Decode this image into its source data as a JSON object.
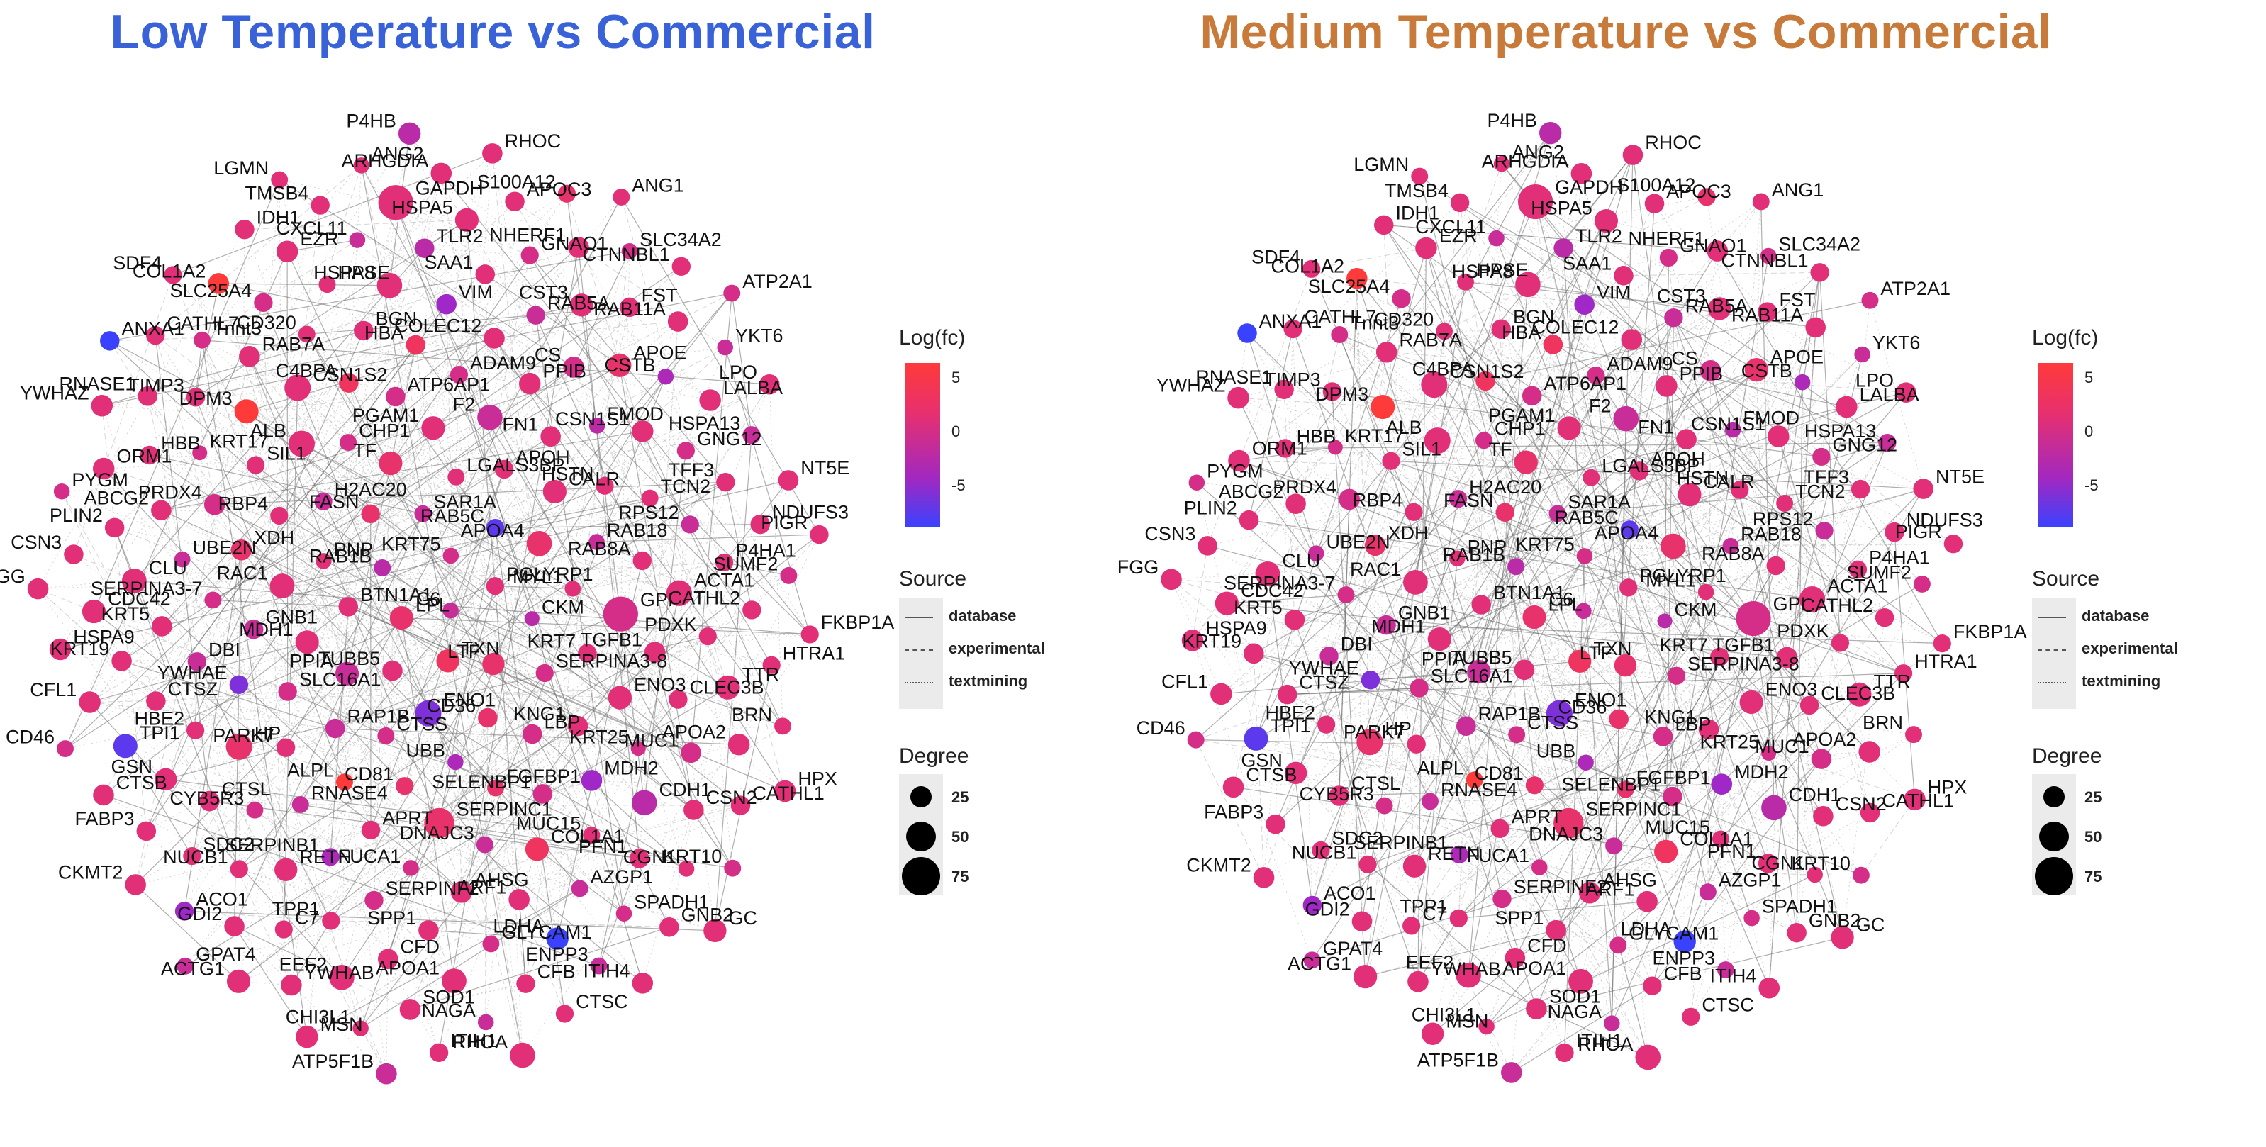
{
  "panels": [
    {
      "id": "low",
      "title": "Low Temperature vs Commercial",
      "title_color": "#3a62d8"
    },
    {
      "id": "medium",
      "title": "Medium Temperature vs Commercial",
      "title_color": "#c87a3a"
    }
  ],
  "legend": {
    "color_title": "Log(fc)",
    "color_ticks": [
      "5",
      "0",
      "-5"
    ],
    "color_high": "#ff3a3a",
    "color_low": "#3a42ff",
    "source_title": "Source",
    "source_items": [
      "database",
      "experimental",
      "textmining"
    ],
    "degree_title": "Degree",
    "degree_items": [
      "25",
      "50",
      "75"
    ]
  },
  "nodes": [
    {
      "label": "C6",
      "lfc": -2,
      "deg": 10
    },
    {
      "label": "LPL",
      "lfc": 1,
      "deg": 30
    },
    {
      "label": "KRT75",
      "lfc": -1,
      "deg": 10
    },
    {
      "label": "TXN",
      "lfc": 2,
      "deg": 28
    },
    {
      "label": "RAB1B",
      "lfc": -3,
      "deg": 12
    },
    {
      "label": "PGLYRP1",
      "lfc": 0,
      "deg": 14
    },
    {
      "label": "TUBB5",
      "lfc": 0,
      "deg": 20
    },
    {
      "label": "SAR1A",
      "lfc": -2,
      "deg": 12
    },
    {
      "label": "LTF",
      "lfc": 1,
      "deg": 26
    },
    {
      "label": "BTN1A1",
      "lfc": 0,
      "deg": 18
    },
    {
      "label": "RAB5C",
      "lfc": -7,
      "deg": 14
    },
    {
      "label": "ENO1",
      "lfc": -6,
      "deg": 40
    },
    {
      "label": "FASN",
      "lfc": 1,
      "deg": 16
    },
    {
      "label": "CKM",
      "lfc": -3,
      "deg": 8
    },
    {
      "label": "PPIA",
      "lfc": -2,
      "deg": 30
    },
    {
      "label": "LGALS3BP",
      "lfc": 0,
      "deg": 12
    },
    {
      "label": "CD36",
      "lfc": 1,
      "deg": 18
    },
    {
      "label": "PNP",
      "lfc": 0,
      "deg": 10
    },
    {
      "label": "APOA4",
      "lfc": 1,
      "deg": 36
    },
    {
      "label": "CTSS",
      "lfc": -1,
      "deg": 12
    },
    {
      "label": "TF",
      "lfc": 1,
      "deg": 30
    },
    {
      "label": "SERPINA3-8",
      "lfc": -1,
      "deg": 14
    },
    {
      "label": "MDH1",
      "lfc": 0,
      "deg": 30
    },
    {
      "label": "APOH",
      "lfc": 0,
      "deg": 16
    },
    {
      "label": "UBB",
      "lfc": -4,
      "deg": 10
    },
    {
      "label": "H2AC20",
      "lfc": -2,
      "deg": 14
    },
    {
      "label": "MYL1",
      "lfc": 0,
      "deg": 10
    },
    {
      "label": "RAP1B",
      "lfc": -2,
      "deg": 18
    },
    {
      "label": "PGAM1",
      "lfc": 0,
      "deg": 30
    },
    {
      "label": "LBP",
      "lfc": -1,
      "deg": 18
    },
    {
      "label": "RAC1",
      "lfc": 0,
      "deg": 34
    },
    {
      "label": "CALR",
      "lfc": 0,
      "deg": 30
    },
    {
      "label": "CD81",
      "lfc": 1,
      "deg": 14
    },
    {
      "label": "CHP1",
      "lfc": -1,
      "deg": 12
    },
    {
      "label": "KRT7",
      "lfc": 0,
      "deg": 16
    },
    {
      "label": "SLC16A1",
      "lfc": -1,
      "deg": 16
    },
    {
      "label": "F2",
      "lfc": -2,
      "deg": 36
    },
    {
      "label": "FGFBP1",
      "lfc": 1,
      "deg": 12
    },
    {
      "label": "RBP4",
      "lfc": 0,
      "deg": 14
    },
    {
      "label": "RAB18",
      "lfc": -2,
      "deg": 10
    },
    {
      "label": "ALPL",
      "lfc": 5,
      "deg": 12
    },
    {
      "label": "ATP6AP1",
      "lfc": -1,
      "deg": 18
    },
    {
      "label": "KNG1",
      "lfc": 0,
      "deg": 20
    },
    {
      "label": "GNB1",
      "lfc": -2,
      "deg": 18
    },
    {
      "label": "FN1",
      "lfc": 0,
      "deg": 20
    },
    {
      "label": "SERPINC1",
      "lfc": 1,
      "deg": 56
    },
    {
      "label": "ALB",
      "lfc": 0,
      "deg": 40
    },
    {
      "label": "GPI",
      "lfc": -1,
      "deg": 80
    },
    {
      "label": "PARK7",
      "lfc": 0,
      "deg": 16
    },
    {
      "label": "ADAM9",
      "lfc": -1,
      "deg": 14
    },
    {
      "label": "SELENBP1",
      "lfc": -1,
      "deg": 18
    },
    {
      "label": "XDH",
      "lfc": 1,
      "deg": 22
    },
    {
      "label": "HSTN",
      "lfc": 0,
      "deg": 14
    },
    {
      "label": "APRT",
      "lfc": 0,
      "deg": 16
    },
    {
      "label": "C4BPA",
      "lfc": 2,
      "deg": 18
    },
    {
      "label": "ENO3",
      "lfc": 0,
      "deg": 30
    },
    {
      "label": "YWHAE",
      "lfc": -6,
      "deg": 16
    },
    {
      "label": "PPIB",
      "lfc": 0,
      "deg": 24
    },
    {
      "label": "DNAJC3",
      "lfc": -2,
      "deg": 12
    },
    {
      "label": "SIL1",
      "lfc": 0,
      "deg": 14
    },
    {
      "label": "RAB8A",
      "lfc": 0,
      "deg": 16
    },
    {
      "label": "RNASE4",
      "lfc": -2,
      "deg": 12
    },
    {
      "label": "HBA",
      "lfc": 2,
      "deg": 18
    },
    {
      "label": "MDH2",
      "lfc": -5,
      "deg": 22
    },
    {
      "label": "SERPINA3-7",
      "lfc": -1,
      "deg": 12
    },
    {
      "label": "FMOD",
      "lfc": -3,
      "deg": 10
    },
    {
      "label": "FUCA1",
      "lfc": -1,
      "deg": 10
    },
    {
      "label": "CSN1S2",
      "lfc": 0,
      "deg": 40
    },
    {
      "label": "TGFB1",
      "lfc": 0,
      "deg": 22
    },
    {
      "label": "HP",
      "lfc": 1,
      "deg": 40
    },
    {
      "label": "COLEC12",
      "lfc": 0,
      "deg": 22
    },
    {
      "label": "COL1A1",
      "lfc": 2,
      "deg": 30
    },
    {
      "label": "PRDX4",
      "lfc": -1,
      "deg": 22
    },
    {
      "label": "TCN2",
      "lfc": 0,
      "deg": 12
    },
    {
      "label": "SERPINB1",
      "lfc": -4,
      "deg": 14
    },
    {
      "label": "BGN",
      "lfc": 0,
      "deg": 18
    },
    {
      "label": "KRT25",
      "lfc": -1,
      "deg": 8
    },
    {
      "label": "DBI",
      "lfc": -2,
      "deg": 16
    },
    {
      "label": "CS",
      "lfc": -1,
      "deg": 22
    },
    {
      "label": "AHSG",
      "lfc": 0,
      "deg": 24
    },
    {
      "label": "DPM3",
      "lfc": 5,
      "deg": 32
    },
    {
      "label": "ACTA1",
      "lfc": 0,
      "deg": 38
    },
    {
      "label": "CYB5R3",
      "lfc": -1,
      "deg": 12
    },
    {
      "label": "VIM",
      "lfc": -5,
      "deg": 20
    },
    {
      "label": "MUC15",
      "lfc": 0,
      "deg": 12
    },
    {
      "label": "UBE2N",
      "lfc": -2,
      "deg": 10
    },
    {
      "label": "CSN1S1",
      "lfc": 0,
      "deg": 24
    },
    {
      "label": "SERPINF2",
      "lfc": -1,
      "deg": 16
    },
    {
      "label": "CD320",
      "lfc": 0,
      "deg": 12
    },
    {
      "label": "CLEC3B",
      "lfc": 0,
      "deg": 16
    },
    {
      "label": "HBE2",
      "lfc": 0,
      "deg": 14
    },
    {
      "label": "RAB5A",
      "lfc": -2,
      "deg": 16
    },
    {
      "label": "ARF1",
      "lfc": 0,
      "deg": 22
    },
    {
      "label": "KRT17",
      "lfc": -1,
      "deg": 8
    },
    {
      "label": "RPS12",
      "lfc": -2,
      "deg": 14
    },
    {
      "label": "RETN",
      "lfc": 0,
      "deg": 28
    },
    {
      "label": "HSPA8",
      "lfc": 0,
      "deg": 36
    },
    {
      "label": "CDH1",
      "lfc": -3,
      "deg": 36
    },
    {
      "label": "KRT5",
      "lfc": 0,
      "deg": 20
    },
    {
      "label": "APOE",
      "lfc": 1,
      "deg": 30
    },
    {
      "label": "SPP1",
      "lfc": 0,
      "deg": 20
    },
    {
      "label": "RAB7A",
      "lfc": 0,
      "deg": 22
    },
    {
      "label": "PDXK",
      "lfc": 0,
      "deg": 14
    },
    {
      "label": "CTSL",
      "lfc": 0,
      "deg": 20
    },
    {
      "label": "SAA1",
      "lfc": 0,
      "deg": 18
    },
    {
      "label": "AZGP1",
      "lfc": -2,
      "deg": 12
    },
    {
      "label": "ABCG2",
      "lfc": 0,
      "deg": 20
    },
    {
      "label": "GNG12",
      "lfc": -1,
      "deg": 14
    },
    {
      "label": "TPP1",
      "lfc": 0,
      "deg": 14
    },
    {
      "label": "HPSE",
      "lfc": 0,
      "deg": 12
    },
    {
      "label": "MUC1",
      "lfc": -1,
      "deg": 20
    },
    {
      "label": "CTSZ",
      "lfc": 0,
      "deg": 18
    },
    {
      "label": "CST3",
      "lfc": 0,
      "deg": 28
    },
    {
      "label": "GLYCAM1",
      "lfc": -1,
      "deg": 12
    },
    {
      "label": "TIMP3",
      "lfc": 0,
      "deg": 16
    },
    {
      "label": "P4HA1",
      "lfc": 0,
      "deg": 14
    },
    {
      "label": "NUCB1",
      "lfc": 0,
      "deg": 14
    },
    {
      "label": "TLR2",
      "lfc": -3,
      "deg": 18
    },
    {
      "label": "PFN1",
      "lfc": 0,
      "deg": 18
    },
    {
      "label": "CLU",
      "lfc": 0,
      "deg": 34
    },
    {
      "label": "CSTB",
      "lfc": -4,
      "deg": 10
    },
    {
      "label": "CFD",
      "lfc": 0,
      "deg": 20
    },
    {
      "label": "SLC25A4",
      "lfc": -1,
      "deg": 16
    },
    {
      "label": "TTR",
      "lfc": 0,
      "deg": 32
    },
    {
      "label": "GSN",
      "lfc": 0,
      "deg": 26
    },
    {
      "label": "GNAO1",
      "lfc": -1,
      "deg": 14
    },
    {
      "label": "LDHA",
      "lfc": -8,
      "deg": 26
    },
    {
      "label": "HBB",
      "lfc": 0,
      "deg": 16
    },
    {
      "label": "TFF3",
      "lfc": 0,
      "deg": 16
    },
    {
      "label": "C7",
      "lfc": 0,
      "deg": 14
    },
    {
      "label": "CXCL11",
      "lfc": -2,
      "deg": 10
    },
    {
      "label": "CSN2",
      "lfc": 0,
      "deg": 20
    },
    {
      "label": "KRT19",
      "lfc": 0,
      "deg": 20
    },
    {
      "label": "FST",
      "lfc": 0,
      "deg": 18
    },
    {
      "label": "APOA1",
      "lfc": 0,
      "deg": 34
    },
    {
      "label": "Tnnt3",
      "lfc": -1,
      "deg": 12
    },
    {
      "label": "CATHL2",
      "lfc": 0,
      "deg": 16
    },
    {
      "label": "SDC2",
      "lfc": 0,
      "deg": 14
    },
    {
      "label": "HSPA5",
      "lfc": 0,
      "deg": 30
    },
    {
      "label": "SPADH1",
      "lfc": -1,
      "deg": 10
    },
    {
      "label": "PLIN2",
      "lfc": 0,
      "deg": 18
    },
    {
      "label": "LALBA",
      "lfc": 0,
      "deg": 24
    },
    {
      "label": "EEF2",
      "lfc": 0,
      "deg": 36
    },
    {
      "label": "EZR",
      "lfc": 0,
      "deg": 24
    },
    {
      "label": "APOA2",
      "lfc": 0,
      "deg": 24
    },
    {
      "label": "TPI1",
      "lfc": -7,
      "deg": 32
    },
    {
      "label": "NHERF1",
      "lfc": 0,
      "deg": 22
    },
    {
      "label": "CFB",
      "lfc": 0,
      "deg": 16
    },
    {
      "label": "RNASE1",
      "lfc": 0,
      "deg": 18
    },
    {
      "label": "NDUFS3",
      "lfc": 0,
      "deg": 18
    },
    {
      "label": "GDI2",
      "lfc": 0,
      "deg": 20
    },
    {
      "label": "GAPDH",
      "lfc": 0,
      "deg": 80
    },
    {
      "label": "CGN1",
      "lfc": 0,
      "deg": 10
    },
    {
      "label": "CDC42",
      "lfc": 0,
      "deg": 30
    },
    {
      "label": "RAB11A",
      "lfc": 0,
      "deg": 20
    },
    {
      "label": "SOD1",
      "lfc": 0,
      "deg": 22
    },
    {
      "label": "COL1A2",
      "lfc": 5,
      "deg": 22
    },
    {
      "label": "HTRA1",
      "lfc": 0,
      "deg": 14
    },
    {
      "label": "FABP3",
      "lfc": 0,
      "deg": 18
    },
    {
      "label": "APOC3",
      "lfc": 0,
      "deg": 18
    },
    {
      "label": "ENPP3",
      "lfc": -2,
      "deg": 12
    },
    {
      "label": "ORM1",
      "lfc": 0,
      "deg": 24
    },
    {
      "label": "HSPA13",
      "lfc": -2,
      "deg": 14
    },
    {
      "label": "YWHAB",
      "lfc": 0,
      "deg": 22
    },
    {
      "label": "TMSB4",
      "lfc": 0,
      "deg": 16
    },
    {
      "label": "CATHL1",
      "lfc": 0,
      "deg": 18
    },
    {
      "label": "CFL1",
      "lfc": 0,
      "deg": 24
    },
    {
      "label": "SLC34A2",
      "lfc": -1,
      "deg": 10
    },
    {
      "label": "NAGA",
      "lfc": -2,
      "deg": 10
    },
    {
      "label": "CATHL7",
      "lfc": 0,
      "deg": 16
    },
    {
      "label": "SUMF2",
      "lfc": -1,
      "deg": 12
    },
    {
      "label": "ACO1",
      "lfc": -5,
      "deg": 16
    },
    {
      "label": "ARHGDIA",
      "lfc": 0,
      "deg": 22
    },
    {
      "label": "GNB2",
      "lfc": 0,
      "deg": 18
    },
    {
      "label": "CSN3",
      "lfc": 0,
      "deg": 18
    },
    {
      "label": "YKT6",
      "lfc": -2,
      "deg": 10
    },
    {
      "label": "CHI3L1",
      "lfc": 0,
      "deg": 10
    },
    {
      "label": "IDH1",
      "lfc": 0,
      "deg": 18
    },
    {
      "label": "BRN",
      "lfc": 0,
      "deg": 12
    },
    {
      "label": "CTSB",
      "lfc": 0,
      "deg": 22
    },
    {
      "label": "S100A12",
      "lfc": 1,
      "deg": 14
    },
    {
      "label": "CTSC",
      "lfc": 0,
      "deg": 14
    },
    {
      "label": "YWHAZ",
      "lfc": 0,
      "deg": 24
    },
    {
      "label": "NT5E",
      "lfc": 0,
      "deg": 20
    },
    {
      "label": "ACTG1",
      "lfc": 0,
      "deg": 30
    },
    {
      "label": "ANG2",
      "lfc": 0,
      "deg": 10
    },
    {
      "label": "KRT10",
      "lfc": -1,
      "deg": 12
    },
    {
      "label": "HSPA9",
      "lfc": 0,
      "deg": 24
    },
    {
      "label": "CTNNBL1",
      "lfc": 0,
      "deg": 16
    },
    {
      "label": "ITIH1",
      "lfc": 0,
      "deg": 16
    },
    {
      "label": "SDF4",
      "lfc": 0,
      "deg": 14
    },
    {
      "label": "FKBP1A",
      "lfc": 0,
      "deg": 14
    },
    {
      "label": "CKMT2",
      "lfc": 0,
      "deg": 22
    },
    {
      "label": "RHOC",
      "lfc": 0,
      "deg": 20
    },
    {
      "label": "ITIH4",
      "lfc": 0,
      "deg": 22
    },
    {
      "label": "PYGM",
      "lfc": -1,
      "deg": 10
    },
    {
      "label": "LPO",
      "lfc": 0,
      "deg": 20
    },
    {
      "label": "MSN",
      "lfc": 0,
      "deg": 26
    },
    {
      "label": "LGMN",
      "lfc": 0,
      "deg": 12
    },
    {
      "label": "HPX",
      "lfc": 0,
      "deg": 24
    },
    {
      "label": "CD46",
      "lfc": -1,
      "deg": 12
    },
    {
      "label": "ANG1",
      "lfc": 0,
      "deg": 12
    },
    {
      "label": "RHOA",
      "lfc": 0,
      "deg": 36
    },
    {
      "label": "ANXA1",
      "lfc": -8,
      "deg": 18
    },
    {
      "label": "PIGR",
      "lfc": 0,
      "deg": 16
    },
    {
      "label": "GPAT4",
      "lfc": -2,
      "deg": 12
    },
    {
      "label": "P4HB",
      "lfc": -3,
      "deg": 26
    },
    {
      "label": "GC",
      "lfc": 0,
      "deg": 28
    },
    {
      "label": "FGG",
      "lfc": 0,
      "deg": 22
    },
    {
      "label": "ATP2A1",
      "lfc": -1,
      "deg": 12
    },
    {
      "label": "ATP5F1B",
      "lfc": -2,
      "deg": 22
    }
  ]
}
